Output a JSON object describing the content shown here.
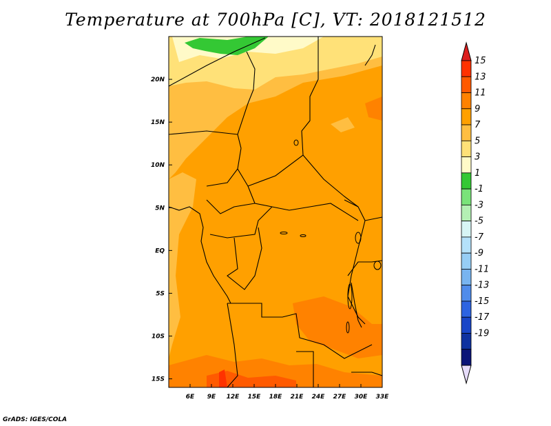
{
  "title": "Temperature at 700hPa [C], VT: 2018121512",
  "credit": "GrADS: IGES/COLA",
  "chart_data": {
    "type": "heatmap",
    "variable": "Temperature at 700hPa",
    "units": "C",
    "valid_time": "2018121512",
    "lon_range": [
      3,
      33
    ],
    "lat_range": [
      -16,
      25
    ],
    "x_ticks": [
      "6E",
      "9E",
      "12E",
      "15E",
      "18E",
      "21E",
      "24E",
      "27E",
      "30E",
      "33E"
    ],
    "y_ticks": [
      "15S",
      "10S",
      "5S",
      "EQ",
      "5N",
      "10N",
      "15N",
      "20N"
    ],
    "colorbar": {
      "levels": [
        "15",
        "13",
        "11",
        "9",
        "7",
        "5",
        "3",
        "1",
        "-1",
        "-3",
        "-5",
        "-7",
        "-9",
        "-11",
        "-13",
        "-15",
        "-17",
        "-19"
      ],
      "colors": [
        "#ff3200",
        "#ff5a00",
        "#ff8200",
        "#ffa000",
        "#ffbe41",
        "#ffe178",
        "#fffac8",
        "#34c834",
        "#7ae37a",
        "#b4f0b4",
        "#d7f5f5",
        "#b4e1fa",
        "#96cdf5",
        "#78b4f0",
        "#508ceb",
        "#2d64e1",
        "#1946c8",
        "#0f32a0",
        "#0a1478"
      ],
      "top_arrow_color": "#dc1e1e",
      "bottom_arrow_color": "#e6dcfa"
    }
  }
}
